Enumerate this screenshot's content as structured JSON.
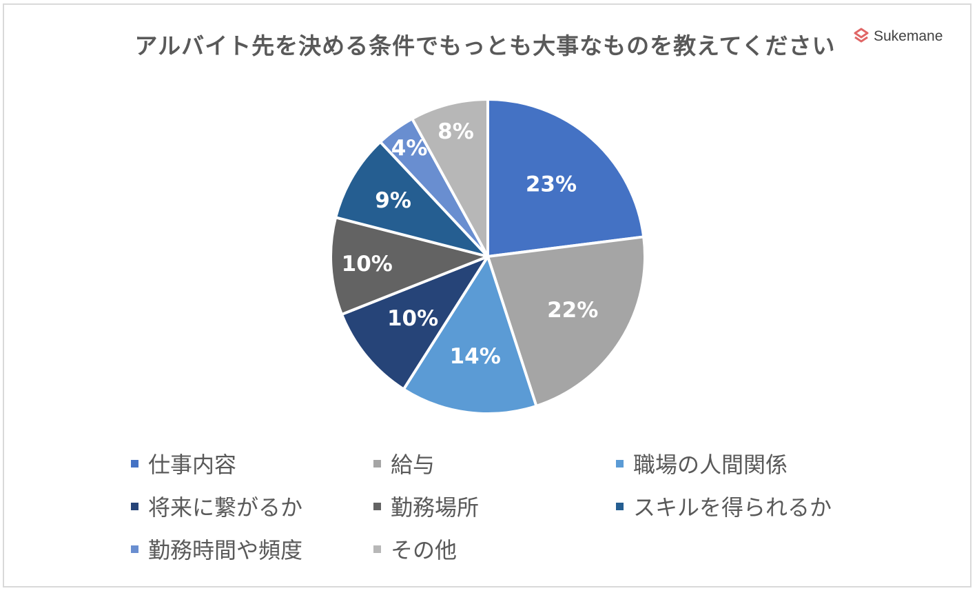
{
  "title": "アルバイト先を決める条件でもっとも大事なものを教えてください",
  "logo": {
    "text": "Sukemane",
    "icon": "sukemane-logo-icon",
    "color": "#e06666"
  },
  "chart_data": {
    "type": "pie",
    "title": "アルバイト先を決める条件でもっとも大事なものを教えてください",
    "categories": [
      "仕事内容",
      "給与",
      "職場の人間関係",
      "将来に繋がるか",
      "勤務場所",
      "スキルを得られるか",
      "勤務時間や頻度",
      "その他"
    ],
    "values": [
      23,
      22,
      14,
      10,
      10,
      9,
      4,
      8
    ],
    "labels": [
      "23%",
      "22%",
      "14%",
      "10%",
      "10%",
      "9%",
      "4%",
      "8%"
    ],
    "colors": [
      "#4472c4",
      "#a5a5a5",
      "#5b9bd5",
      "#264478",
      "#636363",
      "#255e91",
      "#698ed0",
      "#b7b7b7"
    ],
    "legend_position": "bottom",
    "start_angle": "12 o'clock",
    "direction": "clockwise"
  }
}
